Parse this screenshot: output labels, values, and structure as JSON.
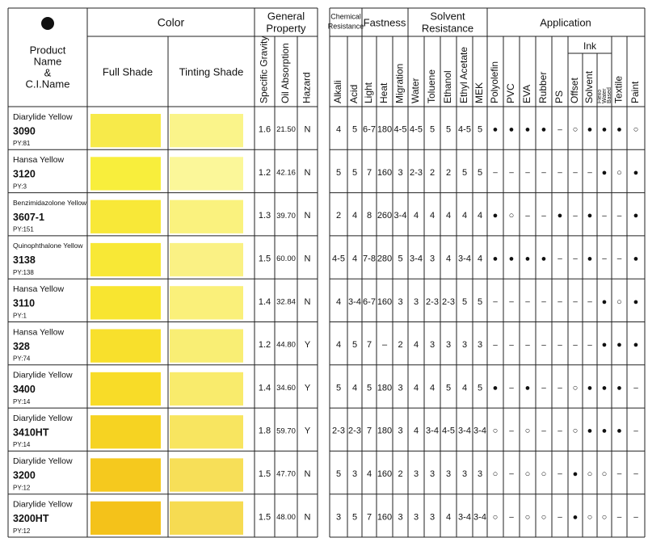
{
  "header": {
    "number": "❹",
    "product": [
      "Product",
      "Name",
      "&",
      "C.I.Name"
    ],
    "color": "Color",
    "full_shade": "Full Shade",
    "tinting_shade": "Tinting Shade",
    "general_property": [
      "General",
      "Property"
    ],
    "chemical_resistance": [
      "Chemical",
      "Resistance"
    ],
    "fastness": "Fastness",
    "solvent_resistance": [
      "Solvent",
      "Resistance"
    ],
    "application": "Application",
    "ink": "Ink",
    "columns": [
      "Specific Gravity",
      "Oil Absorption",
      "Hazard",
      "Alkali",
      "Acid",
      "Light",
      "Heat",
      "Migration",
      "Water",
      "Toluene",
      "Ethanol",
      "Ethyl Acetate",
      "MEK",
      "Polyolefin",
      "PVC",
      "EVA",
      "Rubber",
      "PS",
      "Offset",
      "Solvent",
      [
        "Flexo",
        "Water",
        "Based"
      ],
      "Textile",
      "Paint"
    ]
  },
  "rows": [
    {
      "name": "Diarylide Yellow",
      "code": "3090",
      "ci": "PY:81",
      "cells": [
        "1.6",
        "21.50",
        "N",
        "4",
        "5",
        "6-7",
        "180",
        "4-5",
        "4-5",
        "5",
        "5",
        "4-5",
        "5",
        "●",
        "●",
        "●",
        "●",
        "–",
        "○",
        "●",
        "●",
        "●",
        "○"
      ]
    },
    {
      "name": "Hansa Yellow",
      "code": "3120",
      "ci": "PY:3",
      "cells": [
        "1.2",
        "42.16",
        "N",
        "5",
        "5",
        "7",
        "160",
        "3",
        "2-3",
        "2",
        "2",
        "5",
        "5",
        "–",
        "–",
        "–",
        "–",
        "–",
        "–",
        "–",
        "●",
        "○",
        "●"
      ]
    },
    {
      "name": "Benzimidazolone Yellow",
      "code": "3607-1",
      "ci": "PY:151",
      "cells": [
        "1.3",
        "39.70",
        "N",
        "2",
        "4",
        "8",
        "260",
        "3-4",
        "4",
        "4",
        "4",
        "4",
        "4",
        "●",
        "○",
        "–",
        "–",
        "●",
        "–",
        "●",
        "–",
        "–",
        "●"
      ]
    },
    {
      "name": "Quinophthalone Yellow",
      "code": "3138",
      "ci": "PY:138",
      "cells": [
        "1.5",
        "60.00",
        "N",
        "4-5",
        "4",
        "7-8",
        "280",
        "5",
        "3-4",
        "3",
        "4",
        "3-4",
        "4",
        "●",
        "●",
        "●",
        "●",
        "–",
        "–",
        "●",
        "–",
        "–",
        "●"
      ]
    },
    {
      "name": "Hansa Yellow",
      "code": "3110",
      "ci": "PY:1",
      "cells": [
        "1.4",
        "32.84",
        "N",
        "4",
        "3-4",
        "6-7",
        "160",
        "3",
        "3",
        "2-3",
        "2-3",
        "5",
        "5",
        "–",
        "–",
        "–",
        "–",
        "–",
        "–",
        "–",
        "●",
        "○",
        "●"
      ]
    },
    {
      "name": "Hansa Yellow",
      "code": "328",
      "ci": "PY:74",
      "cells": [
        "1.2",
        "44.80",
        "Y",
        "4",
        "5",
        "7",
        "–",
        "2",
        "4",
        "3",
        "3",
        "3",
        "3",
        "–",
        "–",
        "–",
        "–",
        "–",
        "–",
        "–",
        "●",
        "●",
        "●"
      ]
    },
    {
      "name": "Diarylide Yellow",
      "code": "3400",
      "ci": "PY:14",
      "cells": [
        "1.4",
        "34.60",
        "Y",
        "5",
        "4",
        "5",
        "180",
        "3",
        "4",
        "4",
        "5",
        "4",
        "5",
        "●",
        "–",
        "●",
        "–",
        "–",
        "○",
        "●",
        "●",
        "●",
        "–"
      ]
    },
    {
      "name": "Diarylide Yellow",
      "code": "3410HT",
      "ci": "PY:14",
      "cells": [
        "1.8",
        "59.70",
        "Y",
        "2-3",
        "2-3",
        "7",
        "180",
        "3",
        "4",
        "3-4",
        "4-5",
        "3-4",
        "3-4",
        "○",
        "–",
        "○",
        "–",
        "–",
        "○",
        "●",
        "●",
        "●",
        "–"
      ]
    },
    {
      "name": "Diarylide Yellow",
      "code": "3200",
      "ci": "PY:12",
      "cells": [
        "1.5",
        "47.70",
        "N",
        "5",
        "3",
        "4",
        "160",
        "2",
        "3",
        "3",
        "3",
        "3",
        "3",
        "○",
        "–",
        "○",
        "○",
        "–",
        "●",
        "○",
        "○",
        "–",
        "–"
      ]
    },
    {
      "name": "Diarylide Yellow",
      "code": "3200HT",
      "ci": "PY:12",
      "cells": [
        "1.5",
        "48.00",
        "N",
        "3",
        "5",
        "7",
        "160",
        "3",
        "3",
        "3",
        "4",
        "3-4",
        "3-4",
        "○",
        "–",
        "○",
        "○",
        "–",
        "●",
        "○",
        "○",
        "–",
        "–"
      ]
    }
  ]
}
